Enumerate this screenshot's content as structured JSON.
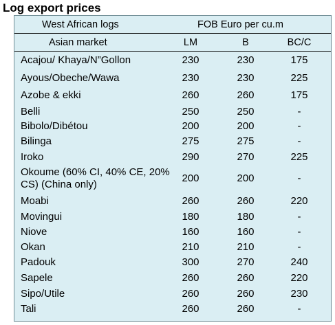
{
  "title": "Log export prices",
  "header": {
    "group_left": "West African logs",
    "group_right": "FOB Euro per cu.m",
    "sub_left": "Asian market",
    "col_lm": "LM",
    "col_b": "B",
    "col_bc": "BC/C"
  },
  "rows": [
    {
      "name": "Acajou/ Khaya/N”Gollon",
      "lm": "230",
      "b": "230",
      "bc": "175"
    },
    {
      "name": "Ayous/Obeche/Wawa",
      "lm": "230",
      "b": "230",
      "bc": "225"
    },
    {
      "name": "Azobe & ekki",
      "lm": "260",
      "b": "260",
      "bc": "175"
    },
    {
      "name": "Belli",
      "lm": "250",
      "b": "250",
      "bc": "-"
    },
    {
      "name": "Bibolo/Dibétou",
      "lm": "200",
      "b": "200",
      "bc": "-"
    },
    {
      "name": "Bilinga",
      "lm": "275",
      "b": "275",
      "bc": "-"
    },
    {
      "name": "Iroko",
      "lm": "290",
      "b": "270",
      "bc": "225"
    },
    {
      "name": "Okoume (60% CI, 40% CE, 20% CS) (China only)",
      "lm": "200",
      "b": "200",
      "bc": "-"
    },
    {
      "name": "Moabi",
      "lm": "260",
      "b": "260",
      "bc": "220"
    },
    {
      "name": "Movingui",
      "lm": "180",
      "b": "180",
      "bc": "-"
    },
    {
      "name": "Niove",
      "lm": "160",
      "b": "160",
      "bc": "-"
    },
    {
      "name": "Okan",
      "lm": "210",
      "b": "210",
      "bc": "-"
    },
    {
      "name": "Padouk",
      "lm": "300",
      "b": "270",
      "bc": "240"
    },
    {
      "name": "Sapele",
      "lm": "260",
      "b": "260",
      "bc": "220"
    },
    {
      "name": "Sipo/Utile",
      "lm": "260",
      "b": "260",
      "bc": "230"
    },
    {
      "name": "Tali",
      "lm": "260",
      "b": "260",
      "bc": "-"
    }
  ]
}
